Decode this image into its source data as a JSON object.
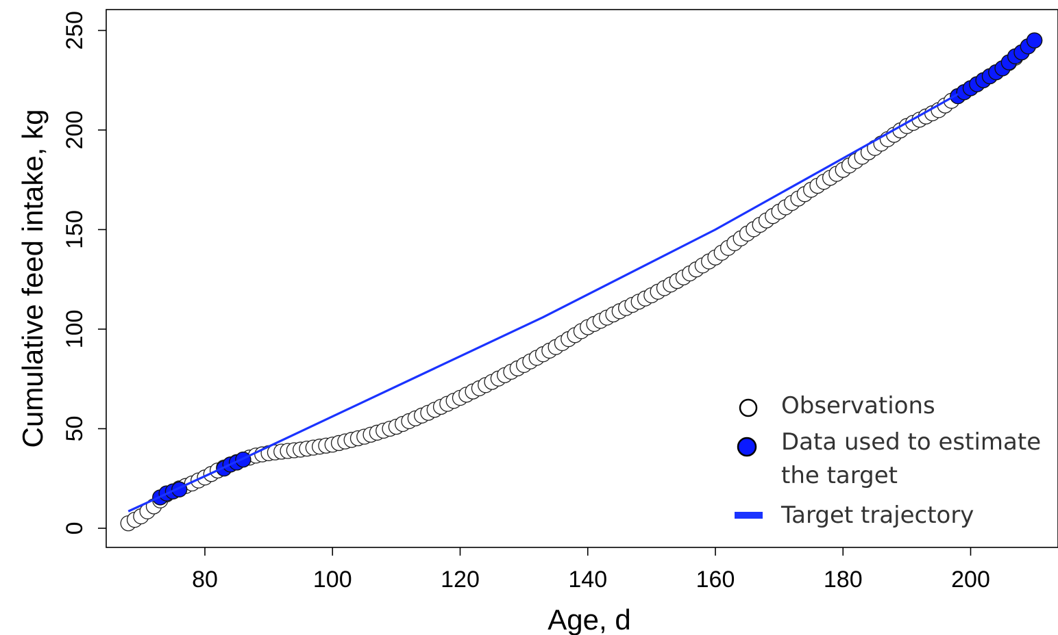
{
  "chart_data": {
    "type": "scatter",
    "title": "",
    "xlabel": "Age, d",
    "ylabel": "Cumulative feed intake, kg",
    "xlim": [
      65,
      211
    ],
    "ylim": [
      -10,
      260
    ],
    "xticks": [
      80,
      100,
      120,
      140,
      160,
      180,
      200
    ],
    "yticks": [
      0,
      50,
      100,
      150,
      200,
      250
    ],
    "xtick_labels": [
      "80",
      "100",
      "120",
      "140",
      "160",
      "180",
      "200"
    ],
    "ytick_labels": [
      "0",
      "50",
      "100",
      "150",
      "200",
      "250"
    ],
    "grid": false,
    "legend_position": "bottom-right",
    "legend": [
      {
        "label": "Observations",
        "marker": "open-circle"
      },
      {
        "label_lines": [
          "Data used to estimate",
          "the target"
        ],
        "marker": "filled-circle"
      },
      {
        "label": "Target trajectory",
        "marker": "line"
      }
    ],
    "colors": {
      "observations_edge": "#000000",
      "used_fill": "#0a1aff",
      "trajectory": "#1a33ff"
    },
    "observations_curve": [
      [
        68,
        2.5
      ],
      [
        70,
        6
      ],
      [
        72,
        11
      ],
      [
        74,
        17
      ],
      [
        76,
        20
      ],
      [
        78,
        22.5
      ],
      [
        80,
        25.5
      ],
      [
        82,
        29
      ],
      [
        84,
        32
      ],
      [
        86,
        34.5
      ],
      [
        88,
        36.5
      ],
      [
        90,
        37.7
      ],
      [
        92,
        38.5
      ],
      [
        95,
        39.5
      ],
      [
        100,
        42
      ],
      [
        105,
        46
      ],
      [
        110,
        51
      ],
      [
        115,
        58
      ],
      [
        120,
        65.5
      ],
      [
        125,
        73.5
      ],
      [
        130,
        82
      ],
      [
        135,
        91
      ],
      [
        140,
        101
      ],
      [
        145,
        109
      ],
      [
        150,
        117
      ],
      [
        155,
        126
      ],
      [
        160,
        136
      ],
      [
        165,
        148
      ],
      [
        170,
        159
      ],
      [
        175,
        170
      ],
      [
        180,
        180
      ],
      [
        185,
        191
      ],
      [
        190,
        202
      ],
      [
        195,
        210
      ],
      [
        198,
        217
      ],
      [
        200,
        221
      ],
      [
        203,
        227
      ],
      [
        205,
        231
      ],
      [
        208,
        239
      ],
      [
        210,
        245
      ]
    ],
    "used_points": [
      {
        "x": 73,
        "y": 15.5
      },
      {
        "x": 74,
        "y": 17.5
      },
      {
        "x": 75,
        "y": 18.5
      },
      {
        "x": 76,
        "y": 19.5
      },
      {
        "x": 83,
        "y": 30
      },
      {
        "x": 84,
        "y": 32
      },
      {
        "x": 85,
        "y": 33
      },
      {
        "x": 86,
        "y": 34.5
      },
      {
        "x": 198,
        "y": 217
      },
      {
        "x": 199,
        "y": 219
      },
      {
        "x": 200,
        "y": 221
      },
      {
        "x": 201,
        "y": 223
      },
      {
        "x": 202,
        "y": 225
      },
      {
        "x": 203,
        "y": 227
      },
      {
        "x": 204,
        "y": 229
      },
      {
        "x": 205,
        "y": 231
      },
      {
        "x": 206,
        "y": 234
      },
      {
        "x": 207,
        "y": 237
      },
      {
        "x": 208,
        "y": 239
      },
      {
        "x": 209,
        "y": 242
      },
      {
        "x": 210,
        "y": 245
      }
    ],
    "target_trajectory": [
      {
        "x": 68,
        "y": 8.5
      },
      {
        "x": 86,
        "y": 35
      },
      {
        "x": 133,
        "y": 106
      },
      {
        "x": 160,
        "y": 150
      },
      {
        "x": 198,
        "y": 218
      }
    ]
  }
}
